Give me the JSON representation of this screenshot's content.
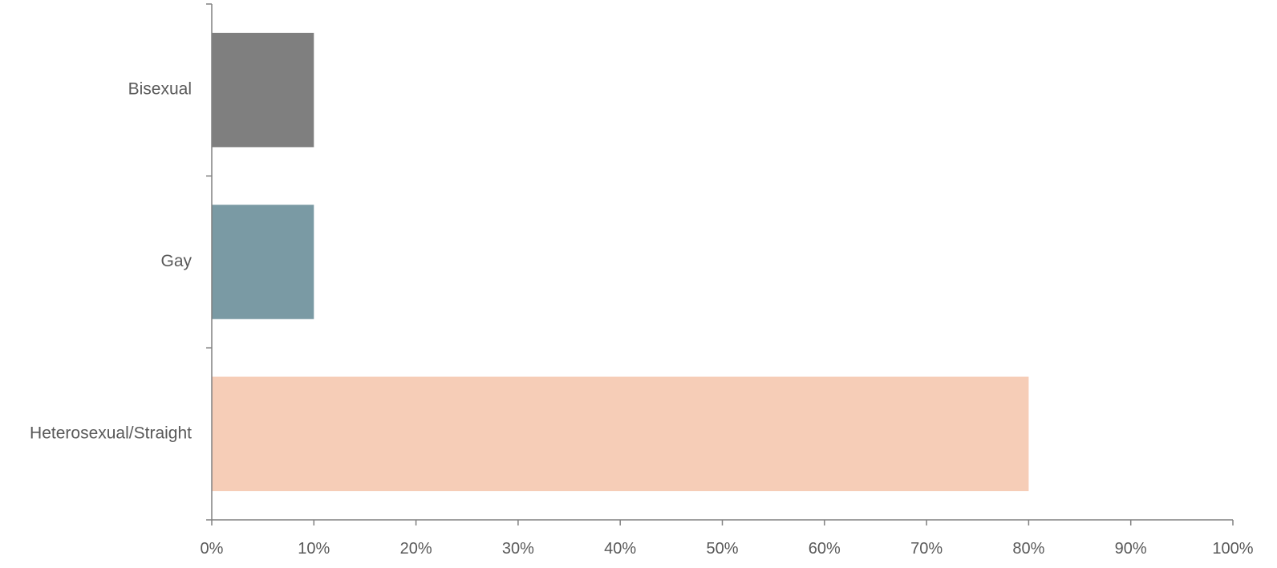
{
  "chart_data": {
    "type": "bar",
    "orientation": "horizontal",
    "categories": [
      "Bisexual",
      "Gay",
      "Heterosexual/Straight"
    ],
    "values": [
      0.1,
      0.1,
      0.8
    ],
    "value_format": "percent",
    "colors": [
      "#7f7f7f",
      "#7a9aa4",
      "#f6cdb7"
    ],
    "xlim": [
      0,
      1
    ],
    "x_ticks": [
      0,
      0.1,
      0.2,
      0.3,
      0.4,
      0.5,
      0.6,
      0.7,
      0.8,
      0.9,
      1.0
    ],
    "x_tick_labels": [
      "0%",
      "10%",
      "20%",
      "30%",
      "40%",
      "50%",
      "60%",
      "70%",
      "80%",
      "90%",
      "100%"
    ],
    "title": "",
    "xlabel": "",
    "ylabel": "",
    "grid": false,
    "legend": "none",
    "axis_color": "#808080",
    "text_color": "#595959"
  }
}
